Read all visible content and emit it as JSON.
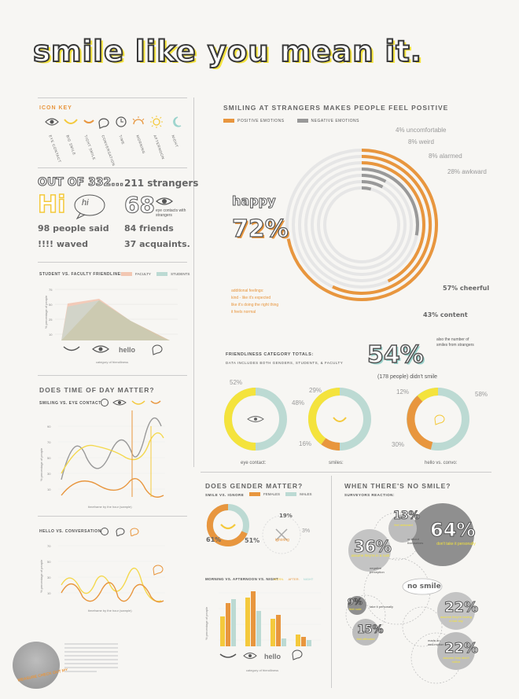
{
  "title": "smile like you mean it.",
  "icon_key": {
    "heading": "ICON KEY",
    "items": [
      {
        "icon": "eye-icon",
        "label": "EYE CONTACT"
      },
      {
        "icon": "smile-icon",
        "label": "BIG SMILE"
      },
      {
        "icon": "small-smile-icon",
        "label": "TIGHT SMILE"
      },
      {
        "icon": "speech-bubble-icon",
        "label": "CONVERSATION"
      },
      {
        "icon": "clock-icon",
        "label": "TIME"
      },
      {
        "icon": "sunrise-icon",
        "label": "MORNING"
      },
      {
        "icon": "sun-icon",
        "label": "AFTERNOON"
      },
      {
        "icon": "moon-icon",
        "label": "NIGHT"
      }
    ]
  },
  "stats": {
    "out_of": "OUT OF 332...",
    "hi": "Hi",
    "hi_bubble": "hi",
    "said": "98 people said",
    "waved": "!!!! waved",
    "strangers": "211 strangers",
    "eye_number": "68",
    "eye_contacts": "eye contacts with strangers",
    "friends": "84 friends",
    "acquaints": "37 acquaints."
  },
  "friendliness": {
    "heading": "STUDENT VS. FACULTY FRIENDLINESS",
    "legend": [
      "FACULTY",
      "STUDENTS"
    ],
    "ylabel": "% percentage of people",
    "xlabel": "category of friendliness",
    "hello": "hello",
    "colors": {
      "faculty": "#f2c7b2",
      "students": "#bcdad3"
    }
  },
  "time_of_day": {
    "heading": "DOES TIME OF DAY MATTER?",
    "sub1": "SMILING VS. EYE CONTACT",
    "sub2": "HELLO VS. CONVERSATION",
    "xlabel": "timeframe by the hour (sample)",
    "ylabel": "% percentage of people"
  },
  "positive": {
    "heading": "SMILING AT STRANGERS MAKES PEOPLE FEEL POSITIVE",
    "legend": [
      "POSITIVE EMOTIONS",
      "NEGATIVE EMOTIONS"
    ],
    "happy": "happy",
    "happy_pct": "72%",
    "uncomfortable": "4% uncomfortable",
    "weird": "8% weird",
    "alarmed": "8% alarmed",
    "awkward": "28% awkward",
    "cheerful": "57% cheerful",
    "content": "43% content",
    "feelings": [
      "additional feelings:",
      "kind - like it's expected",
      "like it's doing the right thing",
      "it feels normal"
    ],
    "colors": {
      "positive": "#e8963e",
      "negative": "#999999",
      "track": "#e6e6e6"
    }
  },
  "category_totals": {
    "heading": "FRIENDLINESS CATEGORY TOTALS:",
    "sub": "DATA INCLUDES BOTH GENDERS, STUDENTS, & FACULTY",
    "big_pct": "54%",
    "big_sub": "(178 people) didn't smile",
    "note": "also the number of smiles from strangers",
    "donuts": [
      {
        "label": "eye contact:",
        "a": "52%",
        "b": "48%"
      },
      {
        "label": "smiles:",
        "a": "29%",
        "b": "16%"
      },
      {
        "label": "hello vs. convo:",
        "a": "12%",
        "b": "58%",
        "c": "30%"
      }
    ]
  },
  "gender": {
    "heading": "DOES GENDER MATTER?",
    "sub": "SMILE VS. IGNORE",
    "legend": [
      "FEMALES",
      "MALES"
    ],
    "left_pct": "61%",
    "right_pct": "51%",
    "top_pct": "19%",
    "side_pct": "3%",
    "ignoring": "ignoring",
    "bars_heading": "MORNING VS. AFTERNOON VS. NIGHT",
    "bars_legend": [
      "MORN.",
      "AFTER.",
      "NIGHT"
    ],
    "bars_xlabel": "category of friendliness",
    "bars_ylabel": "% percentage of people",
    "hello": "hello"
  },
  "no_smile": {
    "heading": "WHEN THERE'S NO SMILE?",
    "sub": "SURVEYORS REACTION:",
    "center": "no smile",
    "bubbles": [
      {
        "pct": "64%",
        "text": "don't take it personally"
      },
      {
        "pct": "13%",
        "text": "feel awkward"
      },
      {
        "pct": "36%",
        "text": "assume they're in a rush"
      },
      {
        "pct": "9%",
        "text": "feel rude"
      },
      {
        "pct": "15%",
        "text": "feel offended"
      },
      {
        "pct": "22%",
        "text": "assume they're having a bad day"
      },
      {
        "pct": "22%",
        "text": "assume they didn't notice"
      }
    ],
    "labels": [
      "or about themselves",
      "negative perception",
      "take it personally",
      "made an assumption"
    ]
  },
  "footer": {
    "caption": "MEASURE CHECK OUT MY"
  }
}
